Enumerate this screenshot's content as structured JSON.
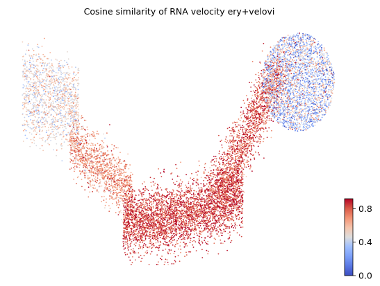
{
  "chart_data": {
    "type": "scatter",
    "title": "Cosine similarity of RNA velocity ery+velovi",
    "xlabel": "",
    "ylabel": "",
    "axes_visible": false,
    "grid": false,
    "colormap": "coolwarm",
    "point_color_min": "#3b4cc0",
    "point_color_mid": "#dddddd",
    "point_color_max": "#b40426",
    "colorbar": {
      "placement": "bottom-right",
      "vmin": 0.0,
      "vmax": 0.92,
      "ticks": [
        0.0,
        0.4,
        0.8
      ],
      "tick_labels": [
        "0.0",
        "0.4",
        "0.8"
      ]
    },
    "clusters": [
      {
        "region": "left arm",
        "x_range": [
          0.0,
          0.18
        ],
        "y_range": [
          0.45,
          0.95
        ],
        "mean_value": 0.5,
        "approx_points": 1400
      },
      {
        "region": "lower-left bend",
        "x_range": [
          0.15,
          0.35
        ],
        "y_range": [
          0.25,
          0.6
        ],
        "mean_value": 0.68,
        "approx_points": 1300
      },
      {
        "region": "bottom trough",
        "x_range": [
          0.32,
          0.7
        ],
        "y_range": [
          0.05,
          0.45
        ],
        "mean_value": 0.84,
        "approx_points": 3800
      },
      {
        "region": "rising limb",
        "x_range": [
          0.62,
          0.82
        ],
        "y_range": [
          0.3,
          0.85
        ],
        "mean_value": 0.8,
        "approx_points": 1800
      },
      {
        "region": "upper-right lobe",
        "x_range": [
          0.75,
          1.0
        ],
        "y_range": [
          0.55,
          1.0
        ],
        "mean_value": 0.38,
        "approx_points": 2600
      }
    ]
  }
}
